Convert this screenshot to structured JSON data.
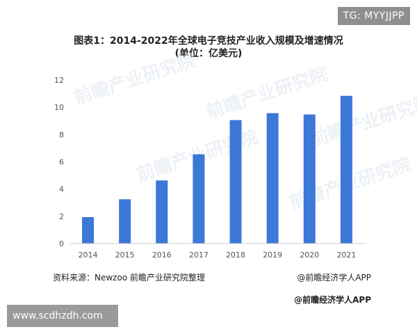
{
  "corner_tag": "TG: MYYJJPP",
  "title_line1": "图表1：2014-2022年全球电子竞技产业收入规模及增速情况",
  "title_line2": "(单位：亿美元)",
  "source_left": "资料来源：Newzoo 前瞻产业研究院整理",
  "source_right": "@前瞻经济学人APP",
  "watermark_footer": "@前瞻经济学人APP",
  "site_url": "www.scdhzdh.com",
  "background_watermark": "前瞻产业研究院",
  "colors": {
    "bar": "#3c78d8",
    "axis": "#cccccc",
    "tick_text": "#555555"
  },
  "chart_data": {
    "type": "bar",
    "categories": [
      "2014",
      "2015",
      "2016",
      "2017",
      "2018",
      "2019",
      "2020",
      "2021"
    ],
    "values": [
      1.94,
      3.25,
      4.63,
      6.55,
      9.06,
      9.57,
      9.47,
      10.84
    ],
    "y_ticks": [
      "0",
      "2",
      "4",
      "6",
      "8",
      "10",
      "12"
    ],
    "ylim": [
      0,
      12
    ],
    "grid": false,
    "legend": "none"
  }
}
